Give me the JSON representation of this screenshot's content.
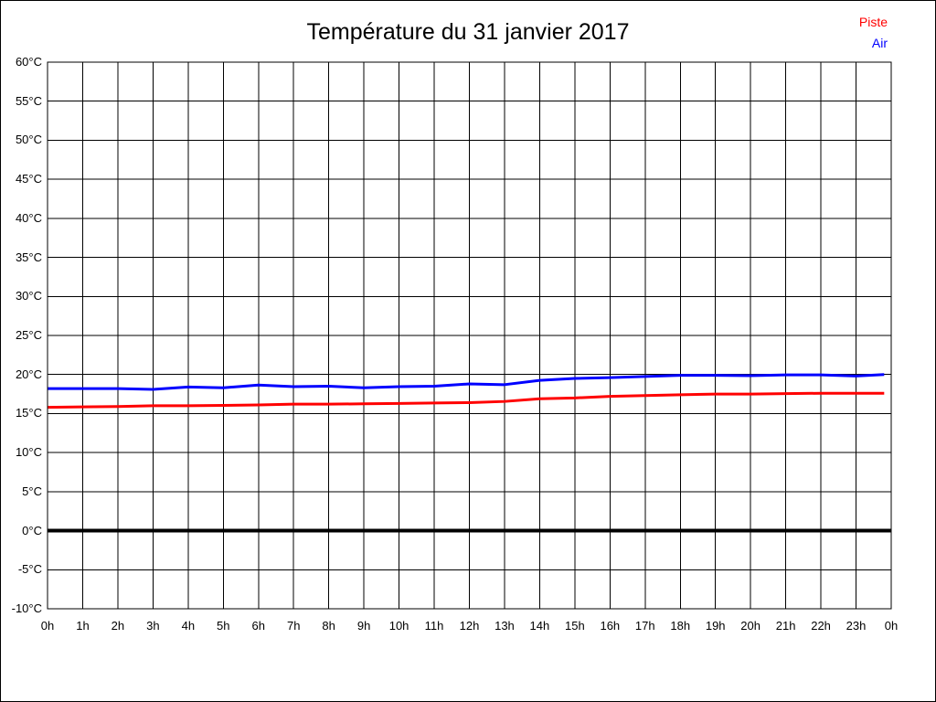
{
  "title": "Température du 31 janvier 2017",
  "legend": {
    "items": [
      {
        "label": "Piste",
        "color": "#ff0000"
      },
      {
        "label": "Air",
        "color": "#0000ff"
      }
    ]
  },
  "chart_data": {
    "type": "line",
    "title": "Température du 31 janvier 2017",
    "xlabel": "",
    "ylabel": "",
    "xlim": [
      0,
      24
    ],
    "ylim": [
      -10,
      60
    ],
    "grid": true,
    "grid_color": "#000000",
    "background_color": "#ffffff",
    "legend_position": "top-right",
    "zero_line": {
      "value": 0,
      "color": "#000000",
      "width": 4
    },
    "y_tick_values": [
      60,
      55,
      50,
      45,
      40,
      35,
      30,
      25,
      20,
      15,
      10,
      5,
      0,
      -5,
      -10
    ],
    "y_tick_labels": [
      "60°C",
      "55°C",
      "50°C",
      "45°C",
      "40°C",
      "35°C",
      "30°C",
      "25°C",
      "20°C",
      "15°C",
      "10°C",
      "5°C",
      "0°C",
      "-5°C",
      "-10°C"
    ],
    "x_tick_hours": [
      0,
      1,
      2,
      3,
      4,
      5,
      6,
      7,
      8,
      9,
      10,
      11,
      12,
      13,
      14,
      15,
      16,
      17,
      18,
      19,
      20,
      21,
      22,
      23,
      24
    ],
    "x_tick_labels": [
      "0h",
      "1h",
      "2h",
      "3h",
      "4h",
      "5h",
      "6h",
      "7h",
      "8h",
      "9h",
      "10h",
      "11h",
      "12h",
      "13h",
      "14h",
      "15h",
      "16h",
      "17h",
      "18h",
      "19h",
      "20h",
      "21h",
      "22h",
      "23h",
      "0h"
    ],
    "x": [
      0,
      1,
      2,
      3,
      4,
      5,
      6,
      7,
      8,
      9,
      10,
      11,
      12,
      13,
      14,
      15,
      16,
      17,
      18,
      19,
      20,
      21,
      22,
      23,
      23.8
    ],
    "series": [
      {
        "name": "Piste",
        "color": "#ff0000",
        "width": 3,
        "values": [
          15.8,
          15.85,
          15.9,
          16.0,
          16.0,
          16.05,
          16.1,
          16.2,
          16.2,
          16.25,
          16.3,
          16.35,
          16.4,
          16.55,
          16.9,
          17.0,
          17.2,
          17.3,
          17.4,
          17.5,
          17.5,
          17.55,
          17.6,
          17.6,
          17.6
        ]
      },
      {
        "name": "Air",
        "color": "#0000ff",
        "width": 3,
        "values": [
          18.2,
          18.2,
          18.2,
          18.1,
          18.4,
          18.3,
          18.65,
          18.45,
          18.5,
          18.3,
          18.45,
          18.5,
          18.8,
          18.7,
          19.25,
          19.5,
          19.6,
          19.75,
          19.9,
          19.9,
          19.85,
          19.95,
          19.95,
          19.8,
          20.0
        ]
      }
    ]
  }
}
